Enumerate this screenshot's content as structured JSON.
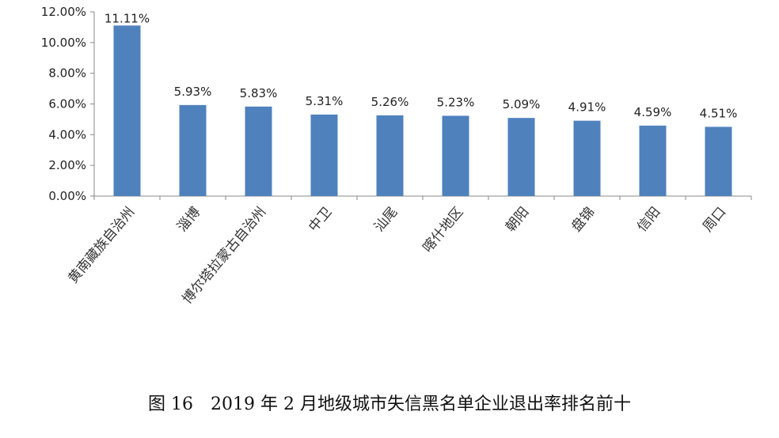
{
  "chart_data": {
    "type": "bar",
    "title": "图 16　2019 年 2 月地级城市失信黑名单企业退出率排名前十",
    "xlabel": "",
    "ylabel": "",
    "categories": [
      "黄南藏族自治州",
      "淄博",
      "博尔塔拉蒙古自治州",
      "中卫",
      "汕尾",
      "喀什地区",
      "朝阳",
      "盘锦",
      "信阳",
      "周口"
    ],
    "values": [
      11.11,
      5.93,
      5.83,
      5.31,
      5.26,
      5.23,
      5.09,
      4.91,
      4.59,
      4.51
    ],
    "data_labels": [
      "11.11%",
      "5.93%",
      "5.83%",
      "5.31%",
      "5.26%",
      "5.23%",
      "5.09%",
      "4.91%",
      "4.59%",
      "4.51%"
    ],
    "ylim": [
      0,
      12
    ],
    "yticks": [
      0,
      2,
      4,
      6,
      8,
      10,
      12
    ],
    "ytick_labels": [
      "0.00%",
      "2.00%",
      "4.00%",
      "6.00%",
      "8.00%",
      "10.00%",
      "12.00%"
    ],
    "grid": false,
    "legend": "none",
    "bar_color": "#4f81bd"
  }
}
